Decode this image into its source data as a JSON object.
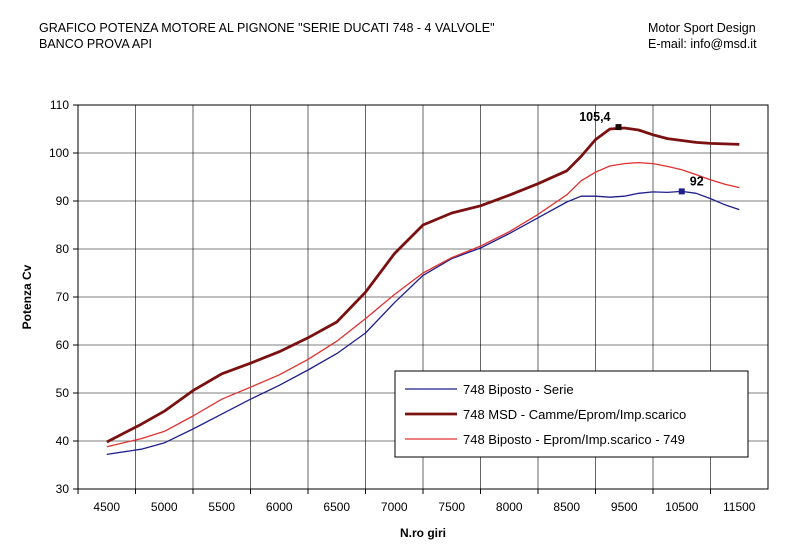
{
  "header": {
    "title_line1": "GRAFICO POTENZA MOTORE AL PIGNONE \"SERIE DUCATI 748  - 4 VALVOLE\"",
    "title_line2": "BANCO PROVA API",
    "company": "Motor Sport Design",
    "email": "E-mail: info@msd.it"
  },
  "chart_data": {
    "type": "line",
    "xlabel": "N.ro giri",
    "ylabel": "Potenza Cv",
    "ylim": [
      30,
      110
    ],
    "yticks": [
      30,
      40,
      50,
      60,
      70,
      80,
      90,
      100,
      110
    ],
    "xticks": [
      "4500",
      "5000",
      "5500",
      "6000",
      "6500",
      "7000",
      "7500",
      "8000",
      "8500",
      "9500",
      "10500",
      "11500"
    ],
    "grid": true,
    "legend_position": "bottom-right",
    "series": [
      {
        "name": "748 Biposto - Serie",
        "color": "#1f1f8c",
        "x": [
          4500,
          4800,
          5000,
          5250,
          5500,
          5750,
          6000,
          6250,
          6500,
          6750,
          7000,
          7250,
          7500,
          7750,
          8000,
          8250,
          8500,
          8750,
          9000,
          9250,
          9500,
          9750,
          10000,
          10250,
          10500,
          10750,
          11000,
          11250,
          11500
        ],
        "values": [
          37.2,
          38.3,
          39.6,
          42.5,
          45.6,
          48.7,
          51.6,
          54.8,
          58.2,
          62.5,
          68.8,
          74.5,
          78.0,
          80.2,
          83.2,
          86.5,
          89.8,
          91.0,
          91.0,
          90.8,
          91.0,
          91.6,
          91.9,
          91.8,
          92.0,
          91.6,
          90.5,
          89.2,
          88.2
        ]
      },
      {
        "name": "748 MSD - Camme/Eprom/Imp.scarico",
        "color": "#7a1010",
        "x": [
          4500,
          4800,
          5000,
          5250,
          5500,
          5750,
          6000,
          6250,
          6500,
          6750,
          7000,
          7250,
          7500,
          7750,
          8000,
          8250,
          8500,
          8750,
          9000,
          9250,
          9500,
          9750,
          10000,
          10250,
          10500,
          10750,
          11000,
          11250,
          11500
        ],
        "values": [
          39.8,
          43.5,
          46.2,
          50.5,
          54.0,
          56.2,
          58.6,
          61.5,
          64.8,
          71.0,
          79.0,
          85.0,
          87.5,
          89.0,
          91.2,
          93.6,
          96.3,
          99.3,
          102.8,
          105.0,
          105.2,
          104.8,
          103.8,
          103.0,
          102.6,
          102.2,
          102.0,
          101.9,
          101.8
        ]
      },
      {
        "name": "748 Biposto - Eprom/Imp.scarico - 749",
        "color": "#e03030",
        "x": [
          4500,
          4800,
          5000,
          5250,
          5500,
          5750,
          6000,
          6250,
          6500,
          6750,
          7000,
          7250,
          7500,
          7750,
          8000,
          8250,
          8500,
          8750,
          9000,
          9250,
          9500,
          9750,
          10000,
          10250,
          10500,
          10750,
          11000,
          11250,
          11500
        ],
        "values": [
          38.8,
          40.5,
          42.0,
          45.2,
          48.7,
          51.2,
          53.8,
          57.0,
          60.8,
          65.5,
          70.5,
          75.0,
          78.2,
          80.6,
          83.6,
          87.2,
          91.3,
          94.2,
          96.0,
          97.3,
          97.8,
          98.0,
          97.8,
          97.2,
          96.5,
          95.5,
          94.4,
          93.5,
          92.8
        ]
      }
    ],
    "annotations": [
      {
        "text": "105,4",
        "x": 9400,
        "y": 105.4,
        "series": 1
      },
      {
        "text": "92",
        "x": 10500,
        "y": 92,
        "series": 0
      }
    ]
  }
}
